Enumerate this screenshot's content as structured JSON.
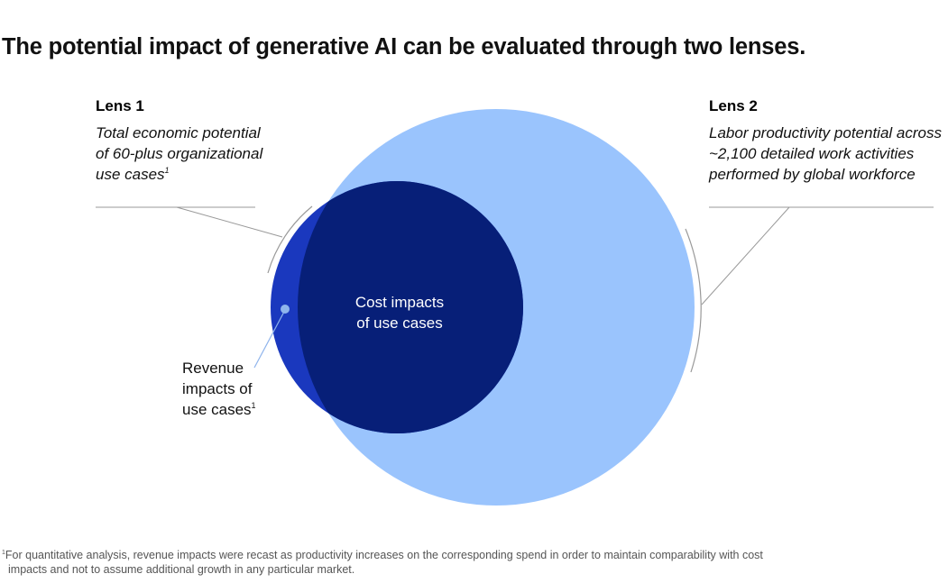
{
  "title": "The potential impact of generative AI can be evaluated through two lenses.",
  "lens1": {
    "heading": "Lens 1",
    "description": "Total economic potential of 60-plus organizational use cases",
    "footnote_marker": "1"
  },
  "lens2": {
    "heading": "Lens 2",
    "description": "Labor productivity potential across ~2,100 detailed work activities performed by global workforce"
  },
  "regions": {
    "cost": {
      "line1": "Cost impacts",
      "line2": "of use cases"
    },
    "revenue": {
      "line1": "Revenue",
      "line2": "impacts of",
      "line3": "use cases",
      "footnote_marker": "1"
    }
  },
  "footnote": {
    "marker": "1",
    "line1": "For quantitative analysis, revenue impacts were recast as productivity increases on the corresponding spend in order to maintain comparability with cost",
    "line2": "impacts and not to assume additional growth in any particular market."
  },
  "colors": {
    "lens2_circle": "#9AC4FD",
    "cost_region": "#071F78",
    "revenue_region": "#1A38BE",
    "leader_line": "#999999",
    "revenue_dot": "#8FB4EC"
  }
}
